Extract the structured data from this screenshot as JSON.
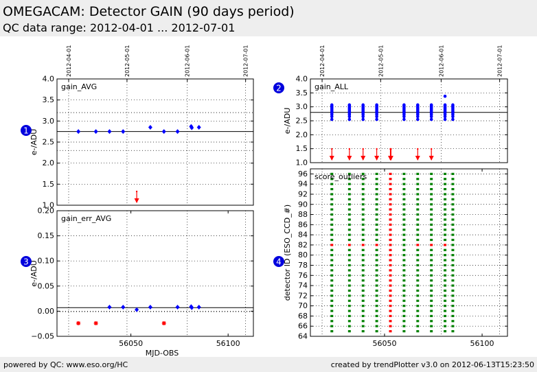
{
  "header": {
    "title": "OMEGACAM: Detector GAIN (90 days period)",
    "subtitle": "QC data range: 2012-04-01 ... 2012-07-01"
  },
  "footer": {
    "left": "powered by QC: www.eso.org/HC",
    "right": "created by trendPlotter v3.0 on 2012-06-13T15:23:50"
  },
  "colors": {
    "blue": "#0000ff",
    "red": "#ff0000",
    "green": "#008000",
    "badge": "#0000dd"
  },
  "chart_data": [
    {
      "id": "panel-1",
      "badge": "1",
      "type": "scatter",
      "title": "gain_AVG",
      "ylabel": "e-/ADU",
      "xlabel": "",
      "xlim": [
        56012,
        56113
      ],
      "ylim": [
        1.0,
        4.0
      ],
      "yticks": [
        1.0,
        1.5,
        2.0,
        2.5,
        3.0,
        3.5,
        4.0
      ],
      "xticks": [],
      "date_ticks": [
        {
          "mjd": 56018,
          "label": "2012-04-01"
        },
        {
          "mjd": 56048,
          "label": "2012-05-01"
        },
        {
          "mjd": 56079,
          "label": "2012-06-01"
        },
        {
          "mjd": 56109,
          "label": "2012-07-01"
        }
      ],
      "hlines_solid": [
        2.75
      ],
      "hlines_dotted": [
        3.2,
        2.3
      ],
      "series": [
        {
          "marker": "diamond",
          "color": "#0000ff",
          "x": [
            56023,
            56032,
            56039,
            56046,
            56060,
            56067,
            56074,
            56081,
            56081.3,
            56085
          ],
          "y": [
            2.75,
            2.75,
            2.75,
            2.75,
            2.85,
            2.75,
            2.75,
            2.87,
            2.84,
            2.85
          ]
        }
      ],
      "outliers_down": [
        56053
      ]
    },
    {
      "id": "panel-2",
      "badge": "2",
      "type": "scatter",
      "title": "gain_ALL",
      "ylabel": "e-/ADU",
      "xlabel": "",
      "xlim": [
        56012,
        56113
      ],
      "ylim": [
        1.0,
        4.0
      ],
      "yticks": [
        1.0,
        1.5,
        2.0,
        2.5,
        3.0,
        3.5,
        4.0
      ],
      "xticks": [],
      "date_ticks": [
        {
          "mjd": 56018,
          "label": "2012-04-01"
        },
        {
          "mjd": 56048,
          "label": "2012-05-01"
        },
        {
          "mjd": 56079,
          "label": "2012-06-01"
        },
        {
          "mjd": 56109,
          "label": "2012-07-01"
        }
      ],
      "hlines_solid": [
        2.8
      ],
      "hlines_dotted": [],
      "series": [
        {
          "marker": "dot",
          "color": "#0000ff",
          "x": [
            56023,
            56023,
            56023,
            56023,
            56023,
            56023,
            56023,
            56023,
            56023,
            56023,
            56032,
            56032,
            56032,
            56032,
            56032,
            56032,
            56032,
            56032,
            56032,
            56032,
            56039,
            56039,
            56039,
            56039,
            56039,
            56039,
            56039,
            56039,
            56039,
            56039,
            56046,
            56046,
            56046,
            56046,
            56046,
            56046,
            56046,
            56046,
            56046,
            56046,
            56060,
            56060,
            56060,
            56060,
            56060,
            56060,
            56060,
            56060,
            56060,
            56060,
            56067,
            56067,
            56067,
            56067,
            56067,
            56067,
            56067,
            56067,
            56067,
            56067,
            56074,
            56074,
            56074,
            56074,
            56074,
            56074,
            56074,
            56074,
            56074,
            56074,
            56081,
            56081,
            56081,
            56081,
            56081,
            56081,
            56081,
            56081,
            56081,
            56081,
            56081,
            56085,
            56085,
            56085,
            56085,
            56085,
            56085,
            56085,
            56085,
            56085,
            56085
          ],
          "y": [
            2.55,
            2.65,
            2.72,
            2.78,
            2.83,
            2.88,
            2.93,
            2.98,
            3.03,
            3.07,
            2.55,
            2.65,
            2.72,
            2.78,
            2.83,
            2.88,
            2.93,
            2.98,
            3.03,
            3.07,
            2.55,
            2.65,
            2.72,
            2.78,
            2.83,
            2.88,
            2.93,
            2.98,
            3.03,
            3.07,
            2.55,
            2.65,
            2.72,
            2.78,
            2.83,
            2.88,
            2.93,
            2.98,
            3.03,
            3.07,
            2.55,
            2.65,
            2.72,
            2.78,
            2.83,
            2.88,
            2.93,
            2.98,
            3.03,
            3.07,
            2.55,
            2.65,
            2.72,
            2.78,
            2.83,
            2.88,
            2.93,
            2.98,
            3.03,
            3.07,
            2.55,
            2.65,
            2.72,
            2.78,
            2.83,
            2.88,
            2.93,
            2.98,
            3.03,
            3.07,
            2.55,
            2.65,
            2.72,
            2.78,
            2.83,
            2.88,
            2.93,
            2.98,
            3.03,
            3.07,
            3.38,
            2.55,
            2.65,
            2.72,
            2.78,
            2.83,
            2.88,
            2.93,
            2.98,
            3.03,
            3.07
          ]
        }
      ],
      "outliers_down": [
        56023,
        56032,
        56039,
        56046,
        56053,
        56053.3,
        56067,
        56074
      ]
    },
    {
      "id": "panel-3",
      "badge": "3",
      "type": "scatter",
      "title": "gain_err_AVG",
      "ylabel": "e-/ADU",
      "xlabel": "MJD-OBS",
      "xlim": [
        56012,
        56113
      ],
      "ylim": [
        -0.05,
        0.2
      ],
      "yticks": [
        -0.05,
        0.0,
        0.05,
        0.1,
        0.15,
        0.2
      ],
      "ytick_labels": [
        "−0.05",
        "0.00",
        "0.05",
        "0.10",
        "0.15",
        "0.20"
      ],
      "xticks": [
        56050,
        56100
      ],
      "date_ticks": [],
      "hlines_solid": [
        0.007
      ],
      "hlines_dotted": [
        -0.001
      ],
      "series": [
        {
          "marker": "diamond",
          "color": "#0000ff",
          "x": [
            56039,
            56046,
            56053,
            56060,
            56074,
            56081,
            56081.3,
            56085
          ],
          "y": [
            0.008,
            0.008,
            0.003,
            0.008,
            0.008,
            0.009,
            0.007,
            0.008
          ]
        }
      ],
      "red_stars": {
        "x": [
          56023,
          56032,
          56067
        ],
        "y": [
          -0.024,
          -0.024,
          -0.024
        ]
      },
      "outliers_down": []
    },
    {
      "id": "panel-4",
      "badge": "4",
      "type": "scatter",
      "title": "score_outliers",
      "ylabel": "detector ID (ESO_CCD_#)",
      "xlabel": "",
      "xlim": [
        56012,
        56113
      ],
      "ylim": [
        64,
        97
      ],
      "yticks": [
        64,
        66,
        68,
        70,
        72,
        74,
        76,
        78,
        80,
        82,
        84,
        86,
        88,
        90,
        92,
        94,
        96
      ],
      "xticks": [
        56050,
        56100
      ],
      "date_ticks": [],
      "hlines_solid": [],
      "hlines_dotted": [],
      "columns": [
        {
          "x": 56023,
          "red_ids": [
            82
          ]
        },
        {
          "x": 56032,
          "red_ids": [
            82
          ]
        },
        {
          "x": 56039,
          "red_ids": [
            82
          ]
        },
        {
          "x": 56046,
          "red_ids": [
            82
          ]
        },
        {
          "x": 56053,
          "red_ids": "all"
        },
        {
          "x": 56060,
          "red_ids": []
        },
        {
          "x": 56067,
          "red_ids": [
            82
          ]
        },
        {
          "x": 56074,
          "red_ids": [
            82
          ]
        },
        {
          "x": 56081,
          "red_ids": [
            82
          ]
        },
        {
          "x": 56085,
          "red_ids": []
        }
      ],
      "id_range": [
        65,
        96
      ],
      "outliers_down": []
    }
  ]
}
